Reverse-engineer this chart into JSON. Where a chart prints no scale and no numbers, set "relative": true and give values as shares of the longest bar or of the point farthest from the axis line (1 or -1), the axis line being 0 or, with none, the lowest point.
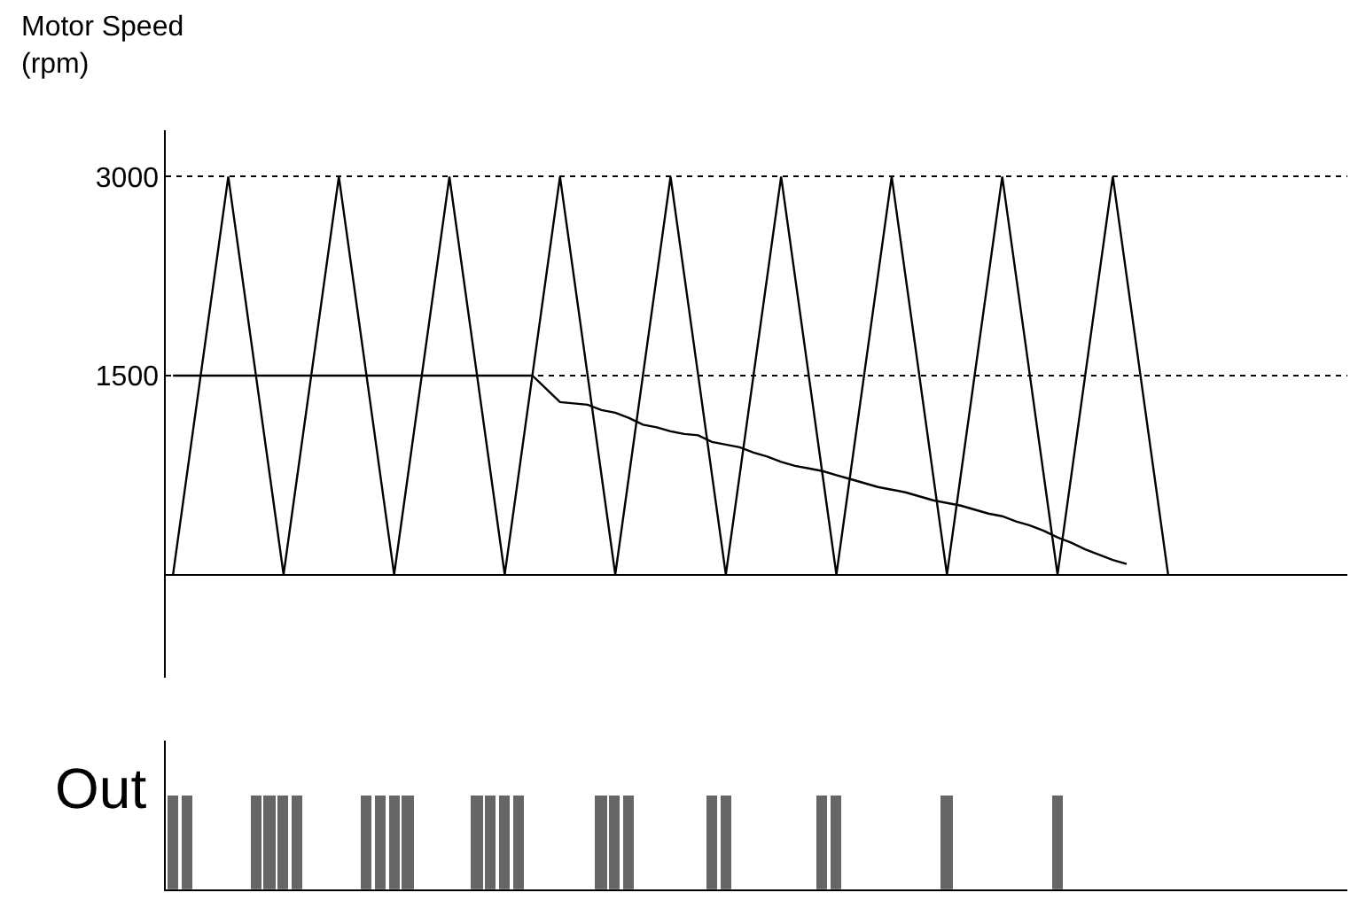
{
  "chart_data": [
    {
      "type": "line",
      "ylabel": "Motor Speed\n(rpm)",
      "categories": [
        null,
        null,
        null,
        null,
        null,
        null,
        null,
        null,
        null,
        null,
        null,
        null,
        null,
        null,
        null,
        null,
        null,
        null,
        null,
        null,
        null,
        null,
        null,
        null,
        null,
        null,
        null,
        null,
        null,
        null,
        null,
        null,
        null,
        null,
        null,
        null,
        null,
        null,
        null,
        null,
        null,
        null,
        null,
        null,
        null,
        null,
        null,
        null,
        null,
        null,
        null,
        null,
        null,
        null,
        null,
        null,
        null,
        null,
        null,
        null,
        null,
        null,
        null,
        null,
        null,
        null,
        null,
        null,
        null,
        null,
        null,
        null,
        null,
        null,
        null,
        null,
        null,
        null,
        null,
        null,
        null,
        null,
        null,
        null,
        null
      ],
      "series": [
        {
          "color": "#000000",
          "values": [
            0,
            750,
            1500,
            2250,
            3000,
            2250,
            1500,
            750,
            0,
            750,
            1500,
            2250,
            3000,
            2250,
            1500,
            750,
            0,
            750,
            1500,
            2250,
            3000,
            2250,
            1500,
            750,
            0,
            750,
            1500,
            2250,
            3000,
            2250,
            1500,
            750,
            0,
            750,
            1500,
            2250,
            3000,
            2250,
            1500,
            750,
            0,
            750,
            1500,
            2250,
            3000,
            2250,
            1500,
            750,
            0,
            750,
            1500,
            2250,
            3000,
            2250,
            1500,
            750,
            0,
            750,
            1500,
            2250,
            3000,
            2250,
            1500,
            750,
            0,
            750,
            1500,
            2250,
            3000,
            2250,
            1500,
            750,
            0,
            null,
            null,
            null,
            null,
            null,
            null,
            null,
            null,
            null,
            null,
            null,
            null
          ]
        },
        {
          "color": "#000000",
          "values": [
            1500,
            1500,
            1500,
            1500,
            1500,
            1500,
            1500,
            1500,
            1500,
            1500,
            1500,
            1500,
            1500,
            1500,
            1500,
            1500,
            1500,
            1500,
            1500,
            1500,
            1500,
            1500,
            1500,
            1500,
            1500,
            1500,
            1500,
            1400,
            1300,
            1290,
            1280,
            1240,
            1220,
            1180,
            1130,
            1110,
            1080,
            1060,
            1050,
            1000,
            980,
            960,
            920,
            890,
            850,
            820,
            800,
            780,
            750,
            720,
            690,
            660,
            640,
            620,
            590,
            560,
            540,
            520,
            490,
            460,
            440,
            400,
            370,
            330,
            280,
            240,
            190,
            150,
            110,
            80,
            null,
            null,
            null,
            null,
            null,
            null,
            null,
            null,
            null,
            null,
            null,
            null,
            null,
            null,
            null
          ]
        }
      ],
      "ylim": [
        -780,
        3350
      ],
      "yticks": [
        1500,
        3000
      ],
      "grid": "y",
      "tick_labels": "y",
      "line_style": "solid"
    },
    {
      "type": "bar",
      "ylabel": "Out",
      "relative": true,
      "tick_labels": false,
      "categories": [
        null,
        null,
        null,
        null,
        null,
        null,
        null,
        null,
        null,
        null,
        null,
        null,
        null,
        null,
        null,
        null,
        null,
        null,
        null,
        null,
        null,
        null,
        null,
        null,
        null,
        null,
        null,
        null,
        null,
        null,
        null,
        null,
        null,
        null,
        null,
        null,
        null,
        null,
        null,
        null,
        null,
        null,
        null,
        null,
        null,
        null,
        null,
        null,
        null,
        null,
        null,
        null,
        null,
        null,
        null,
        null,
        null,
        null,
        null,
        null,
        null,
        null,
        null,
        null,
        null,
        null,
        null,
        null,
        null,
        null,
        null,
        null,
        null,
        null,
        null,
        null,
        null,
        null,
        null,
        null,
        null,
        null,
        null,
        null,
        null
      ],
      "color": "#666666",
      "values": [
        1,
        1,
        null,
        null,
        null,
        null,
        1,
        1,
        1,
        1,
        null,
        null,
        null,
        null,
        1,
        1,
        1,
        1,
        null,
        null,
        null,
        null,
        1,
        1,
        1,
        1,
        null,
        null,
        null,
        null,
        null,
        1,
        1,
        1,
        null,
        null,
        null,
        null,
        null,
        1,
        1,
        null,
        null,
        null,
        null,
        null,
        null,
        1,
        1,
        null,
        null,
        null,
        null,
        null,
        null,
        null,
        1,
        null,
        null,
        null,
        null,
        null,
        null,
        null,
        1,
        null,
        null,
        null,
        null,
        null,
        null,
        null,
        null,
        null,
        null,
        null,
        null,
        null,
        null,
        null,
        null,
        null,
        null,
        null,
        null
      ]
    }
  ]
}
